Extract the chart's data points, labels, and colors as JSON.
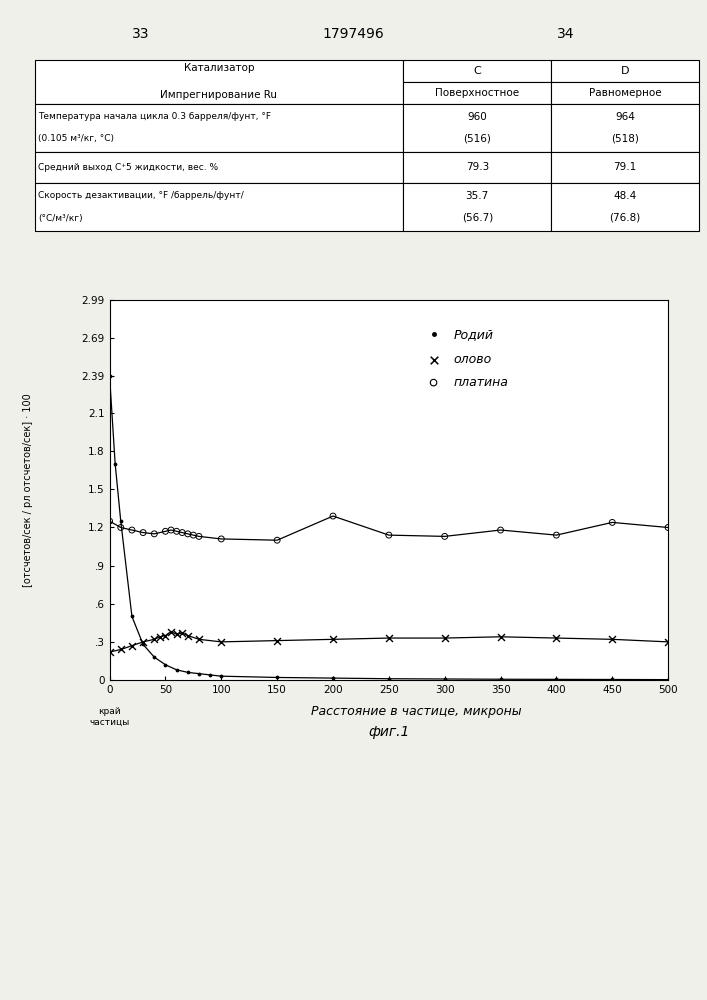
{
  "page_numbers": [
    "33",
    "1797496",
    "34"
  ],
  "table_rows": [
    [
      "Катализатор\nИмпрегнирование Ru",
      "C\nПоверхностное",
      "D\nРавномерное"
    ],
    [
      "Температура начала цикла 0.3 барреля/фунт, °F\n(0.105 м³/кг, °С)",
      "960\n(516)",
      "964\n(518)"
    ],
    [
      "Средний выход С⁺5 жидкости, вес. %",
      "79.3",
      "79.1"
    ],
    [
      "Скорость дезактивации, °F /баррель/фунт/\n(°С/м³/кг)",
      "35.7\n(56.7)",
      "48.4\n(76.8)"
    ]
  ],
  "yticks": [
    0,
    0.3,
    0.6,
    0.9,
    1.2,
    1.5,
    1.8,
    2.1,
    2.39,
    2.69,
    2.99
  ],
  "ytick_labels": [
    "0",
    ".3",
    ".6",
    ".9",
    "1.2",
    "1.5",
    "1.8",
    "2.1",
    "2.39",
    "2.69",
    "2.99"
  ],
  "xticks": [
    0,
    50,
    100,
    150,
    200,
    250,
    300,
    350,
    400,
    450,
    500
  ],
  "xlabel": "Расстояние в частице, микроны",
  "ylabel_line1": "[отсчетов/сек",
  "ylabel_line2": "/рл отсчетов/сек]. 100",
  "xlabel_edge": "край\nчастицы",
  "fig_label": "фиг.1",
  "rhodium_x": [
    0,
    5,
    10,
    20,
    30,
    40,
    50,
    60,
    70,
    80,
    90,
    100,
    150,
    200,
    250,
    300,
    350,
    400,
    450,
    500
  ],
  "rhodium_y": [
    2.39,
    1.7,
    1.25,
    0.5,
    0.28,
    0.18,
    0.12,
    0.08,
    0.06,
    0.05,
    0.04,
    0.03,
    0.02,
    0.015,
    0.01,
    0.008,
    0.006,
    0.005,
    0.004,
    0.003
  ],
  "tin_x": [
    0,
    10,
    20,
    30,
    40,
    45,
    50,
    55,
    60,
    65,
    70,
    80,
    100,
    150,
    200,
    250,
    300,
    350,
    400,
    450,
    500
  ],
  "tin_y": [
    0.22,
    0.24,
    0.27,
    0.3,
    0.32,
    0.34,
    0.35,
    0.38,
    0.36,
    0.37,
    0.35,
    0.32,
    0.3,
    0.31,
    0.32,
    0.33,
    0.33,
    0.34,
    0.33,
    0.32,
    0.3
  ],
  "platinum_x": [
    0,
    10,
    20,
    30,
    40,
    50,
    55,
    60,
    65,
    70,
    75,
    80,
    100,
    150,
    200,
    250,
    300,
    350,
    400,
    450,
    500
  ],
  "platinum_y": [
    1.25,
    1.2,
    1.18,
    1.16,
    1.15,
    1.17,
    1.18,
    1.17,
    1.16,
    1.15,
    1.14,
    1.13,
    1.11,
    1.1,
    1.29,
    1.14,
    1.13,
    1.18,
    1.14,
    1.24,
    1.2
  ],
  "background_color": "#f0f0eb",
  "plot_bg": "#ffffff"
}
